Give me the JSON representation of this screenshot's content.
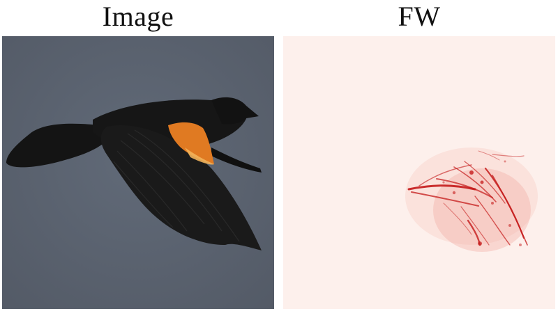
{
  "panels": {
    "left": {
      "title": "Image"
    },
    "right": {
      "title": "FW"
    }
  },
  "colors": {
    "sky": "#5b6371",
    "bird_body": "#151515",
    "bird_accent": "#e07a22",
    "heatmap_bg": "#fdf0ec",
    "heatmap_hot": "#c41a1a"
  }
}
